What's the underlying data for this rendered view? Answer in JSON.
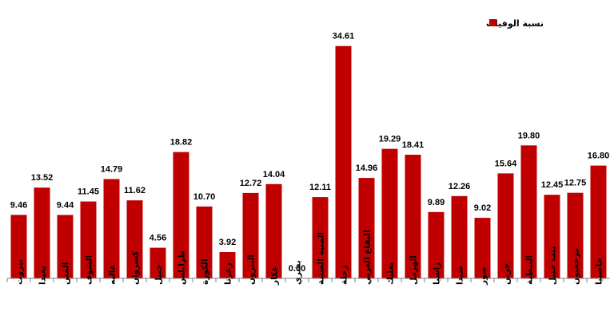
{
  "chart_data": {
    "type": "bar",
    "categories": [
      "بيروت",
      "بعبدا",
      "المتن",
      "الشوف",
      "عاليه",
      "كسروان",
      "جبيل",
      "طرابلس",
      "الكورة",
      "زغرتا",
      "البترون",
      "عكار",
      "بشري",
      "المنية الضنية",
      "زحلة",
      "البقاع الغربي",
      "بعلبك",
      "الهرمل",
      "راشيا",
      "صيدا",
      "صور",
      "جزين",
      "النبطية",
      "بنت جبيل",
      "مرجعيون",
      "حاصبيا"
    ],
    "series": [
      {
        "name": "نسبة الوفيات",
        "values": [
          9.46,
          13.52,
          9.44,
          11.45,
          14.79,
          11.62,
          4.56,
          18.82,
          10.7,
          3.92,
          12.72,
          14.04,
          0.0,
          12.11,
          34.61,
          14.96,
          19.29,
          18.41,
          9.89,
          12.26,
          9.02,
          15.64,
          19.8,
          12.45,
          12.75,
          16.8
        ],
        "labels": [
          "9.46",
          "13.52",
          "9.44",
          "11.45",
          "14.79",
          "11.62",
          "4.56",
          "18.82",
          "10.70",
          "3.92",
          "12.72",
          "14.04",
          "0.00",
          "12.11",
          "34.61",
          "14.96",
          "19.29",
          "18.41",
          "9.89",
          "12.26",
          "9.02",
          "15.64",
          "19.80",
          "12.45",
          "12.75",
          "16.80"
        ]
      }
    ],
    "title": "",
    "xlabel": "",
    "ylabel": "",
    "ylim": [
      0,
      36
    ],
    "grid": false,
    "legend_position": "top-right",
    "colors": {
      "bar": "#c00000",
      "axis": "#7f7f7f"
    }
  }
}
